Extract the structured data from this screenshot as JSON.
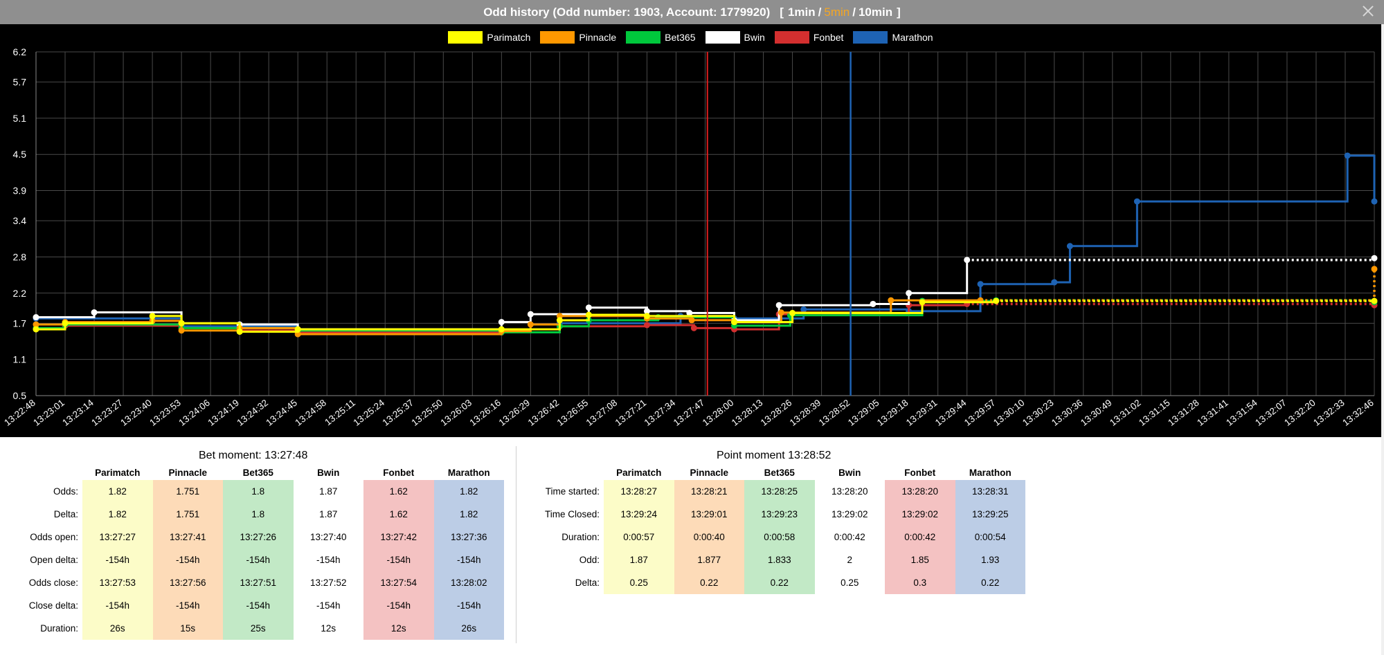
{
  "window": {
    "title": "Odd history (Odd number: 1903, Account: 1779920)",
    "ranges": [
      "1min",
      "5min",
      "10min"
    ],
    "active_range": "5min",
    "range_open": "[",
    "range_close": "]",
    "range_sep": "/"
  },
  "colors": {
    "Parimatch": "#ffff00",
    "Pinnacle": "#ff9800",
    "Bet365": "#00c83c",
    "Bwin": "#ffffff",
    "Fonbet": "#d32f2f",
    "Marathon": "#1e63b4",
    "bet_marker": "#e02020",
    "point_marker": "#1e63b4"
  },
  "chart_data": {
    "type": "line",
    "step": true,
    "grid": true,
    "legend": "top-center",
    "title": "",
    "xlabel": "",
    "ylabel": "",
    "ylim": [
      0.5,
      6.2
    ],
    "yticks": [
      "6.2",
      "5.7",
      "5.1",
      "4.5",
      "3.9",
      "3.4",
      "2.8",
      "2.2",
      "1.7",
      "1.1",
      "0.5"
    ],
    "xticks": [
      "13:22:48",
      "13:23:01",
      "13:23:14",
      "13:23:27",
      "13:23:40",
      "13:23:53",
      "13:24:06",
      "13:24:19",
      "13:24:32",
      "13:24:45",
      "13:24:58",
      "13:25:11",
      "13:25:24",
      "13:25:37",
      "13:25:50",
      "13:26:03",
      "13:26:16",
      "13:26:29",
      "13:26:42",
      "13:26:55",
      "13:27:08",
      "13:27:21",
      "13:27:34",
      "13:27:47",
      "13:28:00",
      "13:28:13",
      "13:28:26",
      "13:28:39",
      "13:28:52",
      "13:29:05",
      "13:29:18",
      "13:29:31",
      "13:29:44",
      "13:29:57",
      "13:30:10",
      "13:30:23",
      "13:30:36",
      "13:30:49",
      "13:31:02",
      "13:31:15",
      "13:31:28",
      "13:31:41",
      "13:31:54",
      "13:32:07",
      "13:32:20",
      "13:32:33",
      "13:32:46"
    ],
    "markers": {
      "bet_moment": "13:27:48",
      "point_moment": "13:28:52"
    },
    "series": [
      {
        "name": "Parimatch",
        "color": "#ffff00",
        "dotted_from": "13:29:57",
        "points": [
          [
            "13:22:48",
            1.6
          ],
          [
            "13:23:01",
            1.7
          ],
          [
            "13:23:40",
            1.82
          ],
          [
            "13:23:53",
            1.7
          ],
          [
            "13:24:19",
            1.56
          ],
          [
            "13:24:45",
            1.6
          ],
          [
            "13:26:16",
            1.6
          ],
          [
            "13:26:42",
            1.75
          ],
          [
            "13:26:55",
            1.84
          ],
          [
            "13:27:21",
            1.82
          ],
          [
            "13:28:00",
            1.72
          ],
          [
            "13:28:26",
            1.87
          ],
          [
            "13:29:24",
            2.05
          ],
          [
            "13:29:57",
            2.07
          ],
          [
            "13:32:46",
            2.07
          ]
        ]
      },
      {
        "name": "Pinnacle",
        "color": "#ff9800",
        "dotted_from": "13:29:50",
        "points": [
          [
            "13:22:48",
            1.68
          ],
          [
            "13:23:01",
            1.72
          ],
          [
            "13:23:40",
            1.74
          ],
          [
            "13:23:53",
            1.58
          ],
          [
            "13:24:19",
            1.62
          ],
          [
            "13:24:45",
            1.52
          ],
          [
            "13:26:16",
            1.57
          ],
          [
            "13:26:29",
            1.68
          ],
          [
            "13:26:42",
            1.82
          ],
          [
            "13:27:21",
            1.78
          ],
          [
            "13:27:41",
            1.751
          ],
          [
            "13:28:00",
            1.72
          ],
          [
            "13:28:21",
            1.877
          ],
          [
            "13:29:10",
            2.08
          ],
          [
            "13:29:50",
            2.08
          ],
          [
            "13:32:46",
            2.6
          ]
        ]
      },
      {
        "name": "Bet365",
        "color": "#00c83c",
        "dotted_from": "13:29:57",
        "points": [
          [
            "13:22:48",
            1.62
          ],
          [
            "13:23:01",
            1.68
          ],
          [
            "13:23:53",
            1.62
          ],
          [
            "13:24:45",
            1.58
          ],
          [
            "13:26:16",
            1.55
          ],
          [
            "13:26:42",
            1.65
          ],
          [
            "13:26:55",
            1.75
          ],
          [
            "13:27:26",
            1.8
          ],
          [
            "13:28:00",
            1.66
          ],
          [
            "13:28:25",
            1.833
          ],
          [
            "13:29:24",
            2.07
          ],
          [
            "13:29:57",
            2.08
          ],
          [
            "13:32:46",
            2.05
          ]
        ]
      },
      {
        "name": "Bwin",
        "color": "#ffffff",
        "dotted_from": "13:29:44",
        "points": [
          [
            "13:22:48",
            1.8
          ],
          [
            "13:23:14",
            1.88
          ],
          [
            "13:23:53",
            1.7
          ],
          [
            "13:24:19",
            1.68
          ],
          [
            "13:24:45",
            1.6
          ],
          [
            "13:26:16",
            1.72
          ],
          [
            "13:26:29",
            1.85
          ],
          [
            "13:26:55",
            1.96
          ],
          [
            "13:27:21",
            1.9
          ],
          [
            "13:27:40",
            1.87
          ],
          [
            "13:28:00",
            1.75
          ],
          [
            "13:28:20",
            2.0
          ],
          [
            "13:29:02",
            2.02
          ],
          [
            "13:29:18",
            2.2
          ],
          [
            "13:29:44",
            2.75
          ],
          [
            "13:32:46",
            2.78
          ]
        ]
      },
      {
        "name": "Fonbet",
        "color": "#d32f2f",
        "dotted_from": "13:29:44",
        "points": [
          [
            "13:22:48",
            1.62
          ],
          [
            "13:23:01",
            1.66
          ],
          [
            "13:23:53",
            1.7
          ],
          [
            "13:24:19",
            1.58
          ],
          [
            "13:24:45",
            1.55
          ],
          [
            "13:26:16",
            1.55
          ],
          [
            "13:26:42",
            1.65
          ],
          [
            "13:27:21",
            1.67
          ],
          [
            "13:27:42",
            1.62
          ],
          [
            "13:28:00",
            1.6
          ],
          [
            "13:28:20",
            1.85
          ],
          [
            "13:29:18",
            2.0
          ],
          [
            "13:29:44",
            2.02
          ],
          [
            "13:32:46",
            2.0
          ]
        ]
      },
      {
        "name": "Marathon",
        "color": "#1e63b4",
        "dotted_from": "",
        "points": [
          [
            "13:22:48",
            1.78
          ],
          [
            "13:23:53",
            1.65
          ],
          [
            "13:24:45",
            1.58
          ],
          [
            "13:26:16",
            1.55
          ],
          [
            "13:26:42",
            1.7
          ],
          [
            "13:27:36",
            1.82
          ],
          [
            "13:28:00",
            1.78
          ],
          [
            "13:28:31",
            1.93
          ],
          [
            "13:29:18",
            1.9
          ],
          [
            "13:29:50",
            2.35
          ],
          [
            "13:30:23",
            2.38
          ],
          [
            "13:30:30",
            2.98
          ],
          [
            "13:31:00",
            3.72
          ],
          [
            "13:32:34",
            4.48
          ],
          [
            "13:32:46",
            3.72
          ]
        ]
      }
    ]
  },
  "bet_moment": {
    "title": "Bet moment: 13:27:48",
    "columns": [
      "Parimatch",
      "Pinnacle",
      "Bet365",
      "Bwin",
      "Fonbet",
      "Marathon"
    ],
    "rows": [
      {
        "label": "Odds:",
        "values": [
          "1.82",
          "1.751",
          "1.8",
          "1.87",
          "1.62",
          "1.82"
        ]
      },
      {
        "label": "Delta:",
        "values": [
          "1.82",
          "1.751",
          "1.8",
          "1.87",
          "1.62",
          "1.82"
        ]
      },
      {
        "label": "Odds open:",
        "values": [
          "13:27:27",
          "13:27:41",
          "13:27:26",
          "13:27:40",
          "13:27:42",
          "13:27:36"
        ]
      },
      {
        "label": "Open delta:",
        "values": [
          "-154h",
          "-154h",
          "-154h",
          "-154h",
          "-154h",
          "-154h"
        ]
      },
      {
        "label": "Odds close:",
        "values": [
          "13:27:53",
          "13:27:56",
          "13:27:51",
          "13:27:52",
          "13:27:54",
          "13:28:02"
        ]
      },
      {
        "label": "Close delta:",
        "values": [
          "-154h",
          "-154h",
          "-154h",
          "-154h",
          "-154h",
          "-154h"
        ]
      },
      {
        "label": "Duration:",
        "values": [
          "26s",
          "15s",
          "25s",
          "12s",
          "12s",
          "26s"
        ]
      }
    ]
  },
  "point_moment": {
    "title": "Point moment 13:28:52",
    "columns": [
      "Parimatch",
      "Pinnacle",
      "Bet365",
      "Bwin",
      "Fonbet",
      "Marathon"
    ],
    "rows": [
      {
        "label": "Time started:",
        "values": [
          "13:28:27",
          "13:28:21",
          "13:28:25",
          "13:28:20",
          "13:28:20",
          "13:28:31"
        ]
      },
      {
        "label": "Time Closed:",
        "values": [
          "13:29:24",
          "13:29:01",
          "13:29:23",
          "13:29:02",
          "13:29:02",
          "13:29:25"
        ]
      },
      {
        "label": "Duration:",
        "values": [
          "0:00:57",
          "0:00:40",
          "0:00:58",
          "0:00:42",
          "0:00:42",
          "0:00:54"
        ]
      },
      {
        "label": "Odd:",
        "values": [
          "1.87",
          "1.877",
          "1.833",
          "2",
          "1.85",
          "1.93"
        ]
      },
      {
        "label": "Delta:",
        "values": [
          "0.25",
          "0.22",
          "0.22",
          "0.25",
          "0.3",
          "0.22"
        ]
      }
    ]
  }
}
